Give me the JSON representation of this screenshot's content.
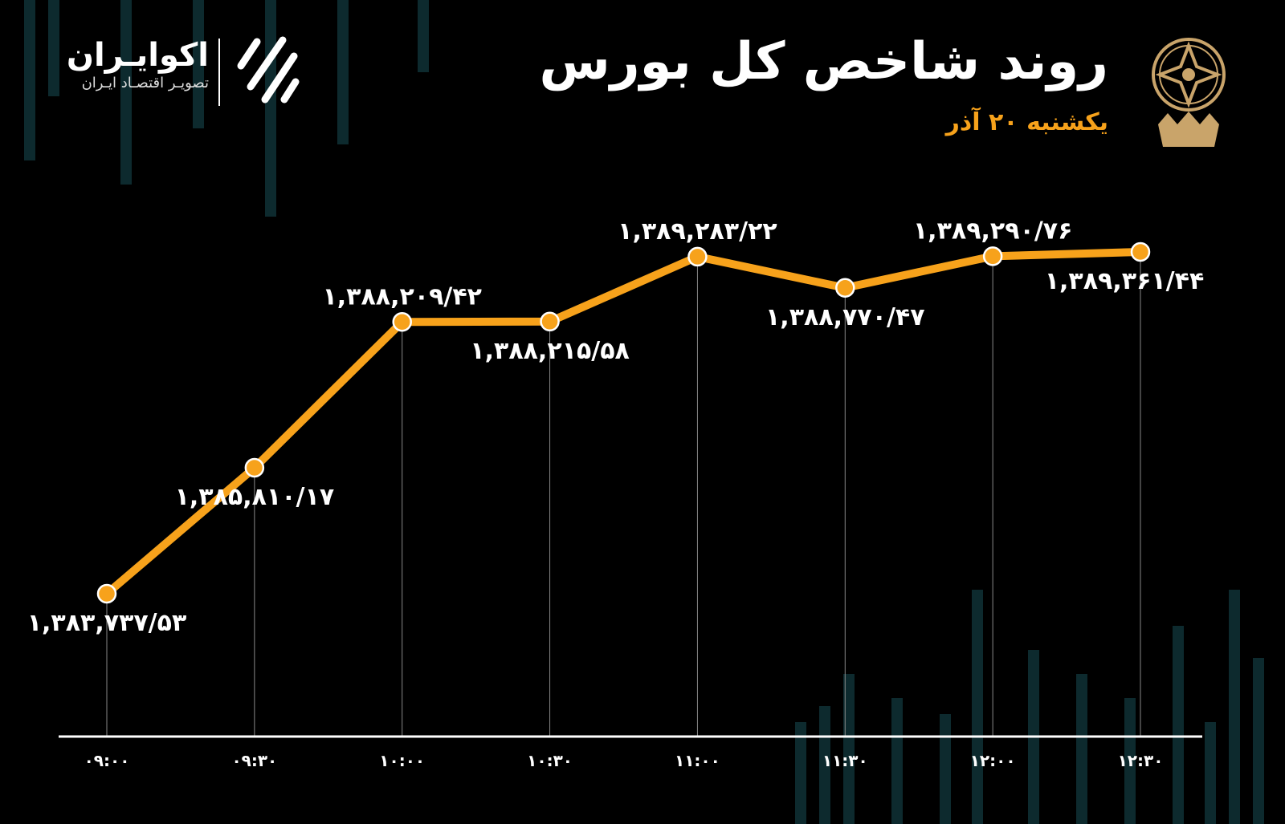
{
  "header": {
    "title": "روند شاخص کل بورس",
    "subtitle": "یکشنبه ۲۰ آذر"
  },
  "brand": {
    "name": "اکوایـران",
    "tagline": "تصویـر اقتصـاد ایـران"
  },
  "colors": {
    "background": "#000000",
    "line": "#f7a21b",
    "accent": "#f7a21b",
    "seal": "#c9a46a",
    "deco": "#0d2a2e"
  },
  "icons": {
    "seal": "tehran-stock-exchange-seal-icon",
    "brand": "ecoiran-logo-icon"
  },
  "chart_data": {
    "type": "line",
    "title": "روند شاخص کل بورس",
    "categories": [
      "09:00",
      "09:30",
      "10:00",
      "10:30",
      "11:00",
      "11:30",
      "12:00",
      "12:30"
    ],
    "tick_labels": [
      "۰۹:۰۰",
      "۰۹:۳۰",
      "۱۰:۰۰",
      "۱۰:۳۰",
      "۱۱:۰۰",
      "۱۱:۳۰",
      "۱۲:۰۰",
      "۱۲:۳۰"
    ],
    "values": [
      1383737.53,
      1385810.17,
      1388209.42,
      1388215.58,
      1389283.22,
      1388770.47,
      1389290.76,
      1389361.44
    ],
    "data_labels": [
      "۱,۳۸۳,۷۳۷/۵۳",
      "۱,۳۸۵,۸۱۰/۱۷",
      "۱,۳۸۸,۲۰۹/۴۲",
      "۱,۳۸۸,۲۱۵/۵۸",
      "۱,۳۸۹,۲۸۳/۲۲",
      "۱,۳۸۸,۷۷۰/۴۷",
      "۱,۳۸۹,۲۹۰/۷۶",
      "۱,۳۸۹,۳۶۱/۴۴"
    ],
    "label_position": [
      "below",
      "below",
      "above",
      "below",
      "above",
      "below",
      "above",
      "below"
    ],
    "xlabel": "",
    "ylabel": "",
    "ylim": [
      1383000,
      1390000
    ],
    "grid": "vertical drop lines",
    "legend": "none"
  }
}
